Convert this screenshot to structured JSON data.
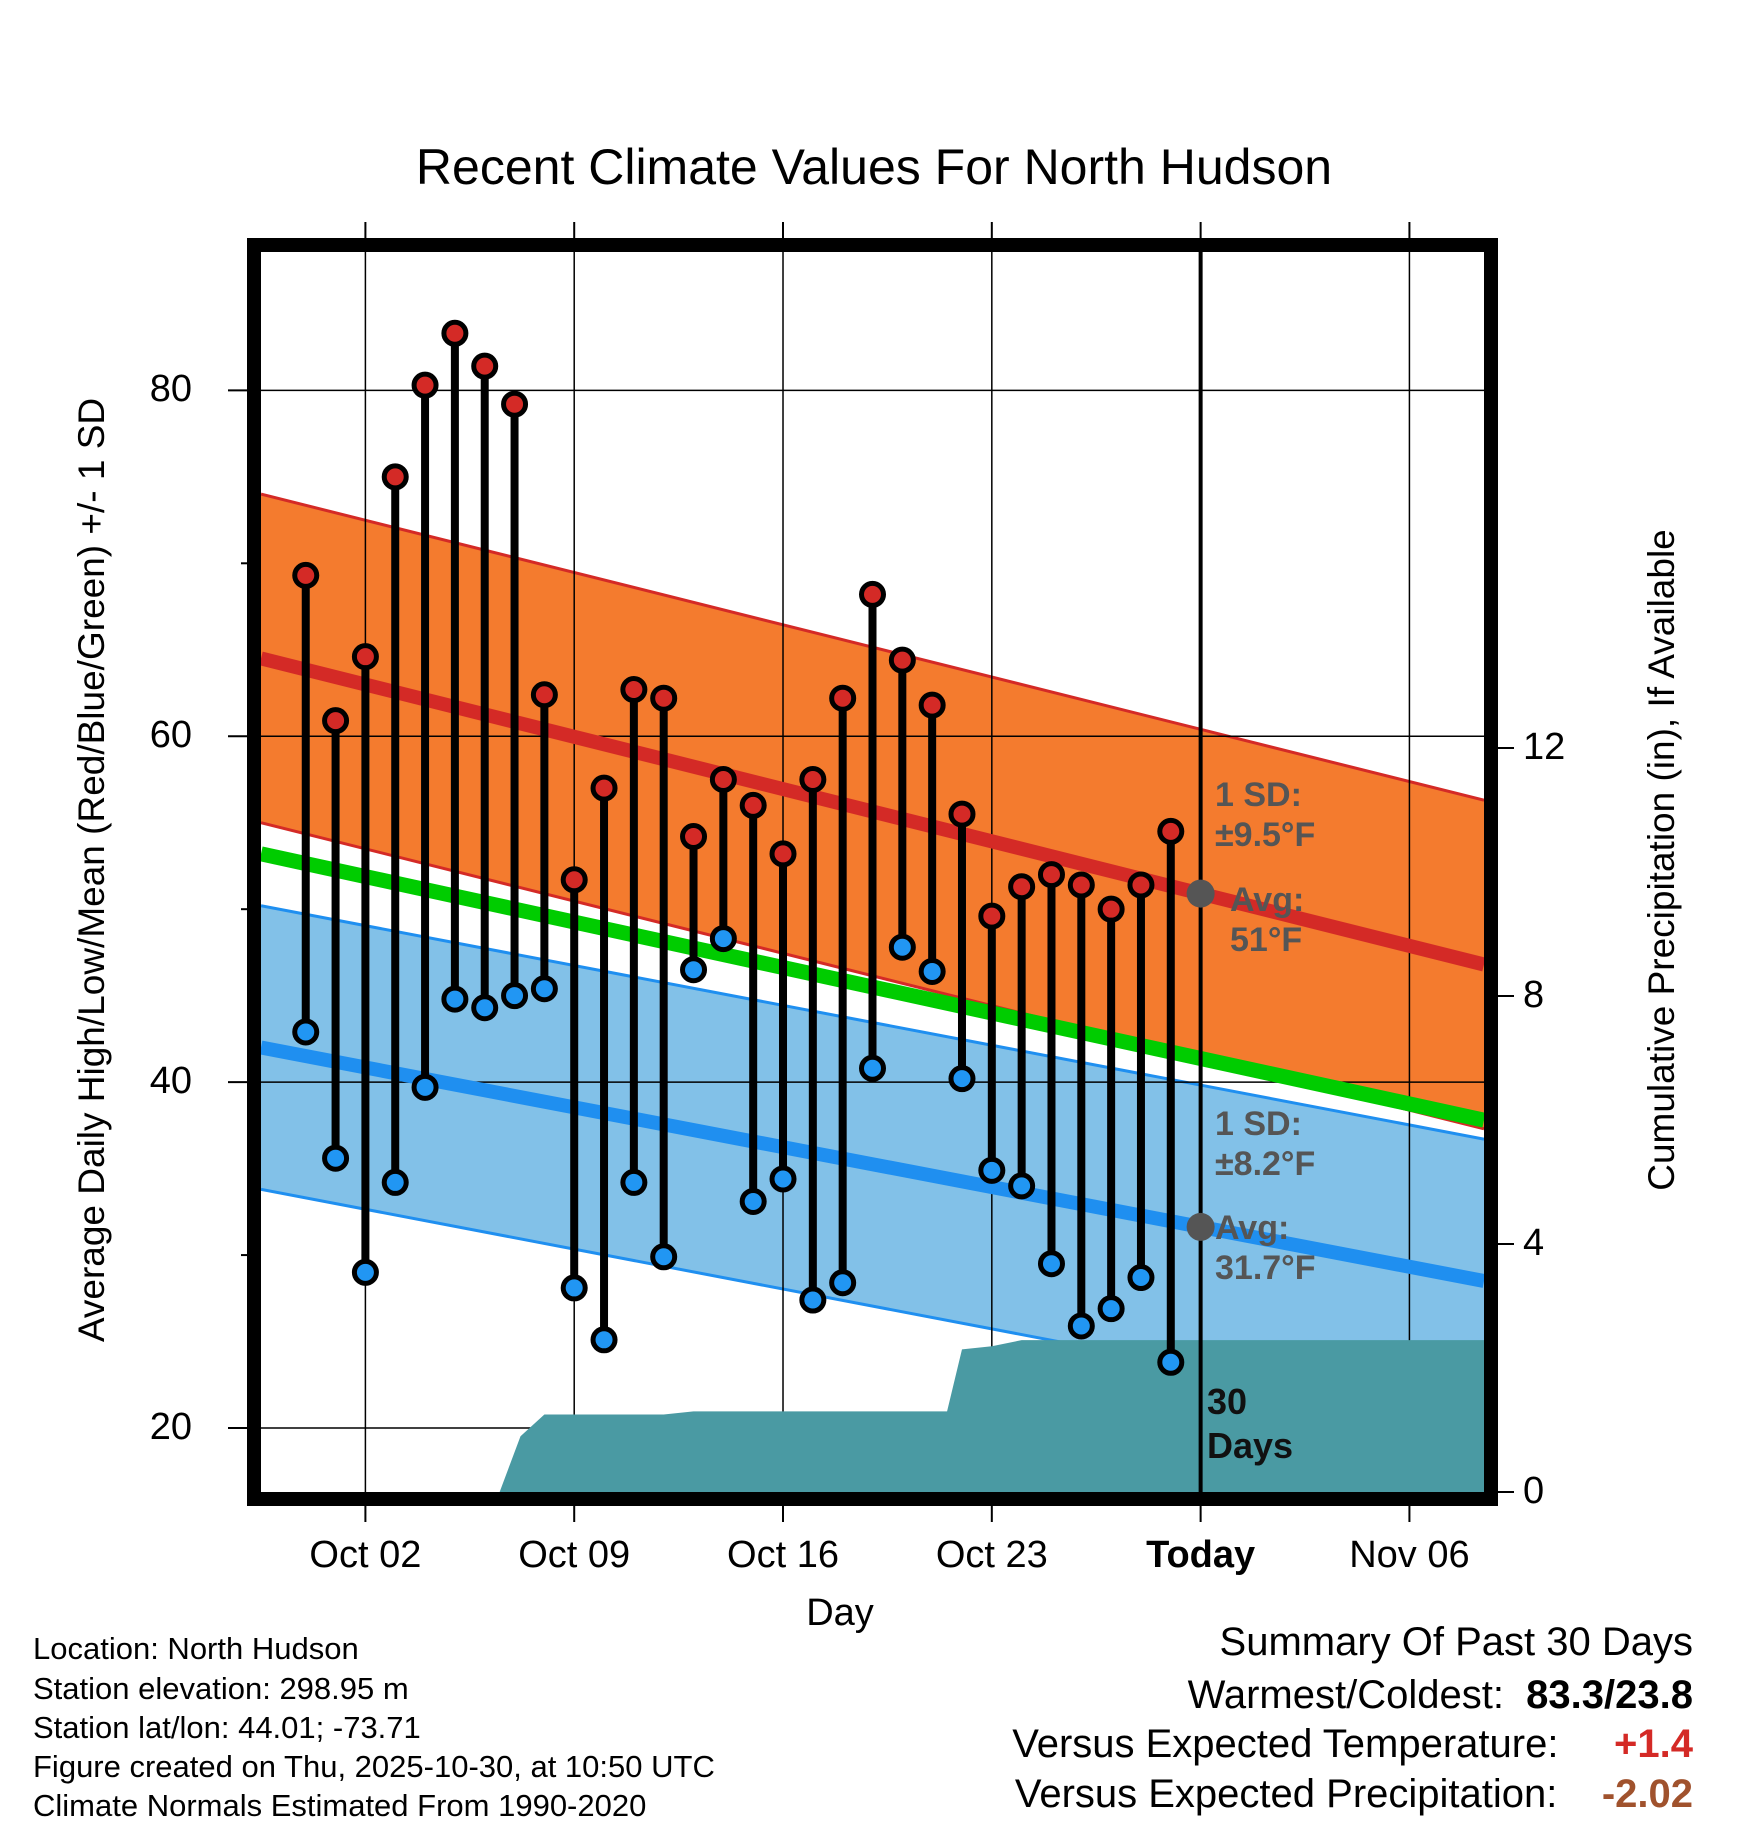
{
  "chart_data": {
    "type": "line",
    "title": "Recent Climate Values For North Hudson",
    "xlabel": "Day",
    "ylabel": "Average Daily High/Low/Mean (Red/Blue/Green) +/- 1 SD",
    "y2label": "Cumulative Precipitation (in), If Available",
    "xlim_day_index": [
      -3.5,
      37.5
    ],
    "ylim": [
      16.3,
      88
    ],
    "y2lim": [
      0,
      20
    ],
    "x_ticks": [
      {
        "day": 0,
        "label": "Oct 02"
      },
      {
        "day": 7,
        "label": "Oct 09"
      },
      {
        "day": 14,
        "label": "Oct 16"
      },
      {
        "day": 21,
        "label": "Oct 23"
      },
      {
        "day": 28,
        "label": "Today"
      },
      {
        "day": 35,
        "label": "Nov 06"
      }
    ],
    "y_ticks": [
      {
        "value": 20,
        "label": "20"
      },
      {
        "value": 40,
        "label": "40"
      },
      {
        "value": 60,
        "label": "60"
      },
      {
        "value": 80,
        "label": "80"
      }
    ],
    "y_minor_ticks": [
      30,
      50,
      70
    ],
    "y2_ticks": [
      {
        "value": 0,
        "label": "0"
      },
      {
        "value": 4,
        "label": "4"
      },
      {
        "value": 8,
        "label": "8"
      },
      {
        "value": 12,
        "label": "12"
      }
    ],
    "today_day": 28,
    "normals": {
      "high": {
        "start": 64.5,
        "end": 46.8,
        "sd": 9.5
      },
      "low": {
        "start": 42.0,
        "end": 28.5,
        "sd": 8.2
      },
      "mean": {
        "start": 53.2,
        "end": 37.8
      }
    },
    "days": [
      -2,
      -1,
      0,
      1,
      2,
      3,
      4,
      5,
      6,
      7,
      8,
      9,
      10,
      11,
      12,
      13,
      14,
      15,
      16,
      17,
      18,
      19,
      20,
      21,
      22,
      23,
      24,
      25,
      26,
      27
    ],
    "highs": [
      69.3,
      60.9,
      64.6,
      75.0,
      80.3,
      83.3,
      81.4,
      79.2,
      62.4,
      51.7,
      57.0,
      62.7,
      62.2,
      54.2,
      57.5,
      56.0,
      53.2,
      57.5,
      62.2,
      68.2,
      64.4,
      61.8,
      55.5,
      49.6,
      51.3,
      52.0,
      51.4,
      50.0,
      51.4,
      54.5
    ],
    "lows": [
      42.9,
      35.6,
      29.0,
      34.2,
      39.7,
      44.8,
      44.3,
      45.0,
      45.4,
      28.1,
      25.1,
      34.2,
      29.9,
      46.5,
      48.3,
      33.1,
      34.4,
      27.4,
      28.4,
      40.8,
      47.8,
      46.4,
      40.2,
      34.9,
      34.0,
      29.5,
      25.9,
      26.9,
      28.7,
      23.8
    ],
    "precip": {
      "x": [
        4.5,
        5.2,
        6.0,
        7.0,
        10.0,
        11.0,
        15.0,
        19.5,
        20.0,
        21.0,
        22.0,
        37.5
      ],
      "values": [
        0,
        0.9,
        1.25,
        1.25,
        1.25,
        1.3,
        1.3,
        1.3,
        2.3,
        2.35,
        2.45,
        2.45
      ]
    },
    "annotations": {
      "high_sd_line1": "1 SD:",
      "high_sd_line2": "±9.5°F",
      "high_avg_line1": "Avg:",
      "high_avg_line2": "51°F",
      "low_sd_line1": "1 SD:",
      "low_sd_line2": "±8.2°F",
      "low_avg_line1": "Avg:",
      "low_avg_line2": "31.7°F",
      "period_line1": "30",
      "period_line2": "Days"
    },
    "colors": {
      "high_band": "#f47b2e",
      "high_line": "#d42a26",
      "low_band": "#82c1e8",
      "low_line": "#1f8ff0",
      "mean_line": "#00cc00",
      "precip": "#4a9aa3",
      "high_dot": "#d42a26",
      "low_dot": "#2196f3",
      "avg_dot": "#555555"
    }
  },
  "info": {
    "location": "Location: North Hudson",
    "elevation": "Station elevation: 298.95 m",
    "latlon": "Station lat/lon: 44.01; -73.71",
    "created": "Figure created on Thu, 2025-10-30, at 10:50 UTC",
    "normals": "Climate Normals Estimated From 1990-2020"
  },
  "summary": {
    "heading": "Summary Of Past 30 Days",
    "warm_cold_label": "Warmest/Coldest:",
    "warm_cold_value": "83.3/23.8",
    "temp_label": "Versus Expected Temperature:",
    "temp_value": "+1.4",
    "temp_color": "#d42a26",
    "precip_label": "Versus Expected Precipitation:",
    "precip_value": "-2.02",
    "precip_color": "#a0522d"
  }
}
